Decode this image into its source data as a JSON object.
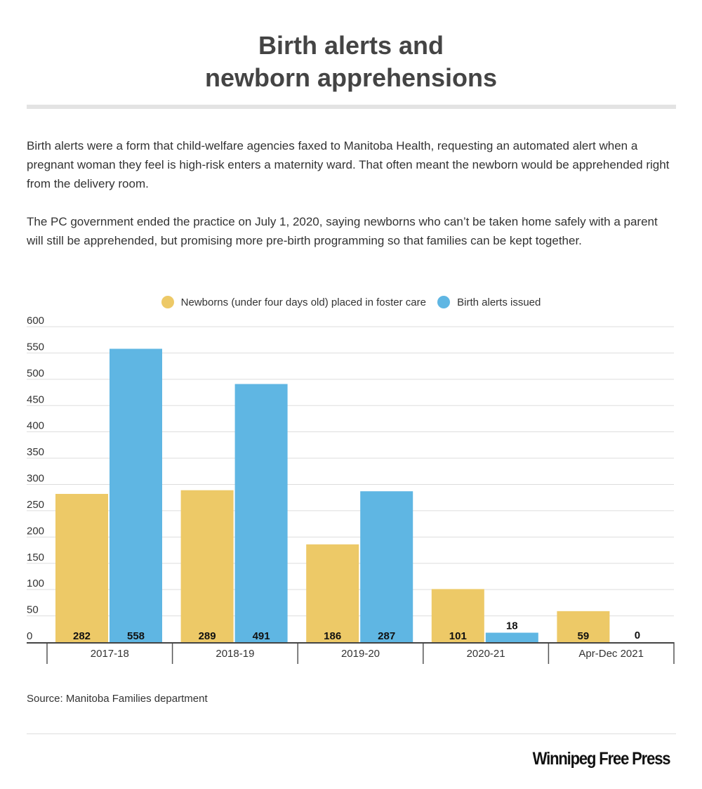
{
  "title": [
    "Birth alerts and",
    "newborn apprehensions"
  ],
  "paragraphs": [
    "Birth alerts were a form that child-welfare agencies faxed to Manitoba Health, requesting an automated alert when a pregnant woman they feel is high-risk enters a maternity ward. That often meant the newborn would be apprehended right from the delivery room.",
    "The PC government ended the practice on July 1, 2020, saying newborns who can’t be taken home safely with a parent will still be apprehended, but promising more pre-birth programming so that families can be kept together."
  ],
  "source": "Source: Manitoba Families department",
  "logo": "Winnipeg Free Press",
  "chart_data": {
    "type": "bar",
    "categories": [
      "2017-18",
      "2018-19",
      "2019-20",
      "2020-21",
      "Apr-Dec 2021"
    ],
    "series": [
      {
        "name": "Newborns (under four days old) placed in foster care",
        "color": "#edc967",
        "values": [
          282,
          289,
          186,
          101,
          59
        ]
      },
      {
        "name": "Birth alerts issued",
        "color": "#5fb6e3",
        "values": [
          558,
          491,
          287,
          18,
          0
        ]
      }
    ],
    "ylim": [
      0,
      600
    ],
    "yticks": [
      0,
      50,
      100,
      150,
      200,
      250,
      300,
      350,
      400,
      450,
      500,
      550,
      600
    ],
    "grid": true,
    "legend": "top-center",
    "data_labels": true
  }
}
